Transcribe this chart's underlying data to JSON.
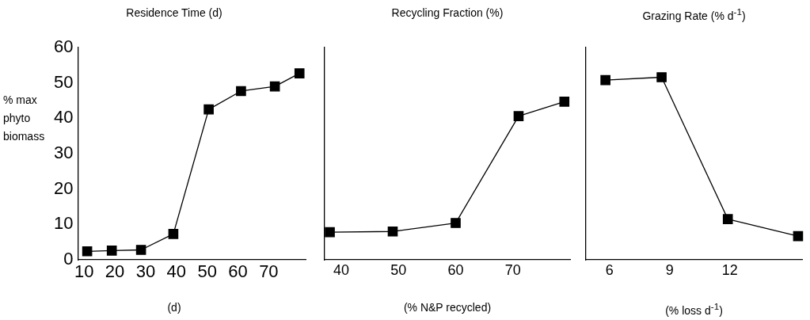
{
  "chart_data": [
    {
      "type": "line",
      "title": "Residence Time (d)",
      "xlabel": "(d)",
      "ylabel": "% max phyto biomass",
      "marker": "square",
      "line_style": "solid",
      "grid": false,
      "legend": false,
      "xlim": [
        8,
        82
      ],
      "xticks": [
        10,
        20,
        30,
        40,
        50,
        60,
        70
      ],
      "ylim": [
        0,
        60
      ],
      "yticks": [
        0,
        10,
        20,
        30,
        40,
        50,
        60
      ],
      "series": [
        {
          "color": "#000000",
          "x": [
            11,
            19,
            28.5,
            39,
            50.5,
            61,
            72,
            80
          ],
          "values": [
            2.4,
            2.6,
            2.8,
            7.3,
            42.5,
            47.7,
            49,
            52.7
          ]
        }
      ]
    },
    {
      "type": "line",
      "title": "Recycling Fraction (%)",
      "xlabel": "(% N&P recycled)",
      "marker": "square",
      "line_style": "solid",
      "grid": false,
      "legend": false,
      "tick_labels": "x",
      "xlim": [
        37,
        80
      ],
      "xticks": [
        40,
        50,
        60,
        70
      ],
      "ylim": [
        0,
        60
      ],
      "series": [
        {
          "color": "#000000",
          "x": [
            38,
            49,
            60,
            71,
            79
          ],
          "values": [
            7.8,
            8,
            10.4,
            40.6,
            44.7
          ]
        }
      ]
    },
    {
      "type": "line",
      "title": "Grazing Rate (% d$^{-1}$)",
      "xlabel": "(% loss d$^{-1}$)",
      "marker": "square",
      "line_style": "solid",
      "grid": false,
      "legend": false,
      "tick_labels": "x",
      "xlim": [
        4.8,
        15.6
      ],
      "xticks": [
        6,
        9,
        12
      ],
      "ylim": [
        0,
        60
      ],
      "series": [
        {
          "color": "#000000",
          "x": [
            5.8,
            8.6,
            11.9,
            15.4
          ],
          "values": [
            50.8,
            51.6,
            11.5,
            6.7
          ]
        }
      ]
    }
  ]
}
